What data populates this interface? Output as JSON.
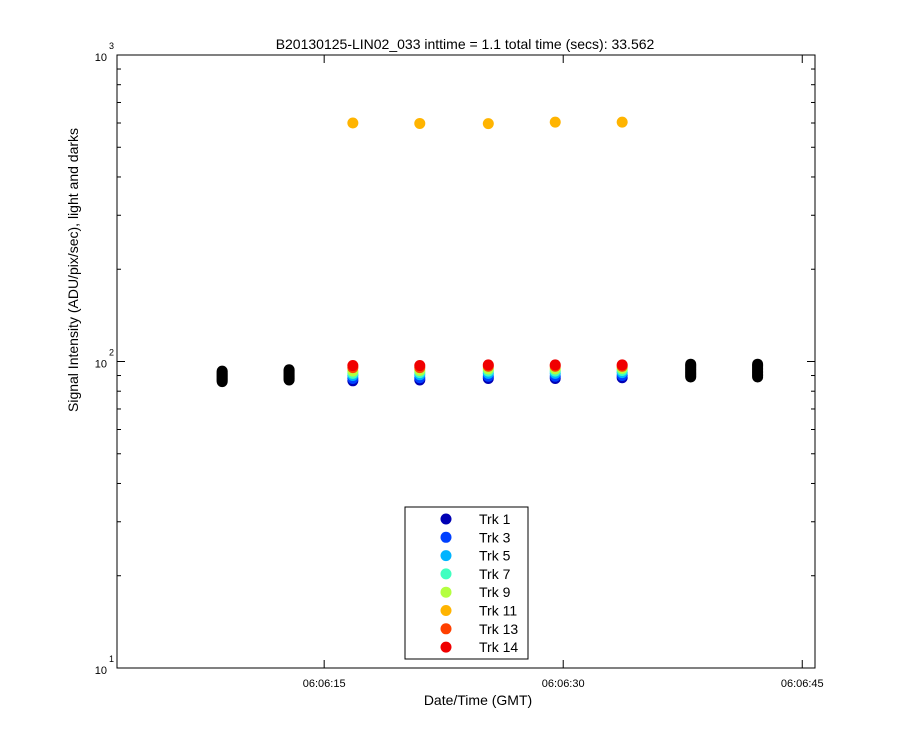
{
  "chart_data": {
    "type": "scatter",
    "title": "B20130125-LIN02_033 inttime = 1.1 total time (secs): 33.562",
    "xlabel": "Date/Time (GMT)",
    "ylabel": "Signal Intensity (ADU/pix/sec), light and darks",
    "y_scale": "log",
    "ylim": [
      10,
      1000
    ],
    "y_ticks": [
      {
        "value": 10,
        "base": "10",
        "exp": "1"
      },
      {
        "value": 100,
        "base": "10",
        "exp": "2"
      },
      {
        "value": 1000,
        "base": "10",
        "exp": "3"
      }
    ],
    "xlim_seconds_of_minute": [
      2.0,
      45.8
    ],
    "x_ticks": [
      {
        "value": 15,
        "label": "06:06:15"
      },
      {
        "value": 30,
        "label": "06:06:30"
      },
      {
        "value": 45,
        "label": "06:06:45"
      }
    ],
    "light_frame_times": [
      16.8,
      21.0,
      25.3,
      29.5,
      33.7
    ],
    "dark_frames": {
      "color": "#000000",
      "times": [
        8.6,
        12.8,
        38.0,
        42.2
      ],
      "ranges": [
        [
          86,
          93
        ],
        [
          87,
          94
        ],
        [
          89,
          98
        ],
        [
          89,
          98
        ]
      ]
    },
    "series": [
      {
        "name": "Trk 1",
        "color": "#0000b4",
        "values": [
          86.5,
          87.0,
          88.0,
          88.0,
          88.5
        ]
      },
      {
        "name": "Trk 3",
        "color": "#0040ff",
        "values": [
          88.0,
          88.5,
          89.5,
          89.5,
          90.0
        ]
      },
      {
        "name": "Trk 5",
        "color": "#00b4ff",
        "values": [
          90.0,
          90.5,
          91.5,
          91.5,
          92.0
        ]
      },
      {
        "name": "Trk 7",
        "color": "#40ffc0",
        "values": [
          91.5,
          92.0,
          93.0,
          93.0,
          93.5
        ]
      },
      {
        "name": "Trk 9",
        "color": "#b4ff40",
        "values": [
          93.0,
          93.5,
          94.5,
          94.5,
          95.0
        ]
      },
      {
        "name": "Trk 11",
        "color": "#ffb400",
        "values": [
          600,
          598,
          597,
          604,
          604
        ]
      },
      {
        "name": "Trk 13",
        "color": "#ff4000",
        "values": [
          95.5,
          95.5,
          96.5,
          96.5,
          96.5
        ]
      },
      {
        "name": "Trk 14",
        "color": "#f00000",
        "values": [
          97.0,
          97.0,
          97.5,
          97.5,
          97.5
        ]
      }
    ],
    "legend_position": "bottom-center",
    "grid": false
  }
}
